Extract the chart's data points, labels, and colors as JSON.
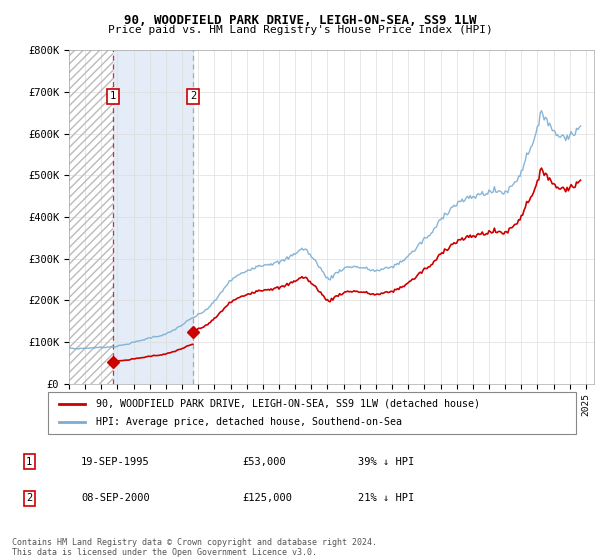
{
  "title": "90, WOODFIELD PARK DRIVE, LEIGH-ON-SEA, SS9 1LW",
  "subtitle": "Price paid vs. HM Land Registry's House Price Index (HPI)",
  "legend_entry1": "90, WOODFIELD PARK DRIVE, LEIGH-ON-SEA, SS9 1LW (detached house)",
  "legend_entry2": "HPI: Average price, detached house, Southend-on-Sea",
  "transaction1_date": "19-SEP-1995",
  "transaction1_price": 53000,
  "transaction1_pct": "39% ↓ HPI",
  "transaction2_date": "08-SEP-2000",
  "transaction2_price": 125000,
  "transaction2_pct": "21% ↓ HPI",
  "footnote": "Contains HM Land Registry data © Crown copyright and database right 2024.\nThis data is licensed under the Open Government Licence v3.0.",
  "red_color": "#cc0000",
  "blue_color": "#7aadd4",
  "ylim": [
    0,
    800000
  ],
  "ylabel_ticks": [
    0,
    100000,
    200000,
    300000,
    400000,
    500000,
    600000,
    700000,
    800000
  ],
  "ylabel_labels": [
    "£0",
    "£100K",
    "£200K",
    "£300K",
    "£400K",
    "£500K",
    "£600K",
    "£700K",
    "£800K"
  ],
  "t1_year": 1995.72,
  "t1_price": 53000,
  "t2_year": 2000.69,
  "t2_price": 125000,
  "hpi_at_t1": 87000,
  "hpi_at_t2": 161000,
  "xmin": 1993.0,
  "xmax": 2025.5
}
